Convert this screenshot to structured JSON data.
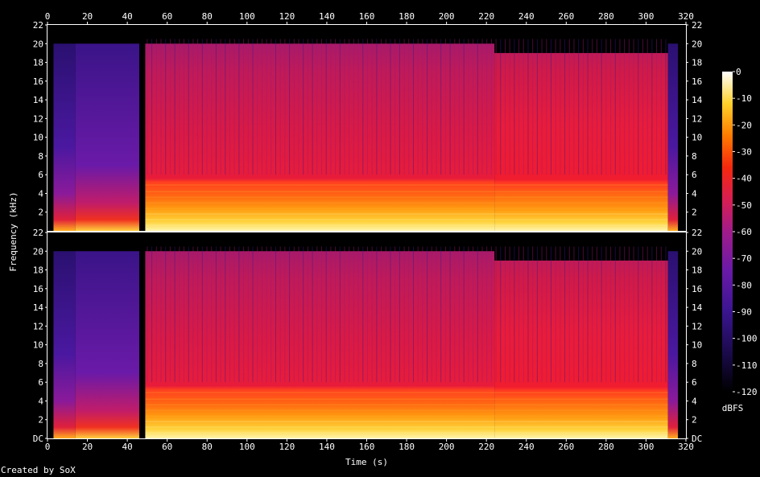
{
  "credit": "Created by SoX",
  "chart_data": {
    "type": "heatmap",
    "xlabel": "Time (s)",
    "ylabel": "Frequency (kHz)",
    "x_ticks": [
      0,
      20,
      40,
      60,
      80,
      100,
      120,
      140,
      160,
      180,
      200,
      220,
      240,
      260,
      280,
      300,
      320
    ],
    "xlim": [
      0,
      320
    ],
    "channels": [
      {
        "y_ticks": [
          "22",
          "20",
          "18",
          "16",
          "14",
          "12",
          "10",
          "8",
          "6",
          "4",
          "2"
        ]
      },
      {
        "y_ticks": [
          "22",
          "20",
          "18",
          "16",
          "14",
          "12",
          "10",
          "8",
          "6",
          "4",
          "2",
          "DC"
        ]
      }
    ],
    "ylim_khz": [
      0,
      22
    ],
    "colorbar": {
      "label": "dBFS",
      "ticks": [
        0,
        -10,
        -20,
        -30,
        -40,
        -50,
        -60,
        -70,
        -80,
        -90,
        -100,
        -110,
        -120
      ],
      "range": [
        -120,
        0
      ]
    },
    "segments": [
      {
        "start_s": 3,
        "end_s": 14,
        "level_dbfs": -95,
        "cutoff_khz": 20
      },
      {
        "start_s": 14,
        "end_s": 46,
        "level_dbfs": -90,
        "cutoff_khz": 20
      },
      {
        "start_s": 49,
        "end_s": 224,
        "level_dbfs": -60,
        "cutoff_khz": 20
      },
      {
        "start_s": 224,
        "end_s": 311,
        "level_dbfs": -55,
        "cutoff_khz": 19
      },
      {
        "start_s": 311,
        "end_s": 316,
        "level_dbfs": -95,
        "cutoff_khz": 20
      }
    ]
  }
}
